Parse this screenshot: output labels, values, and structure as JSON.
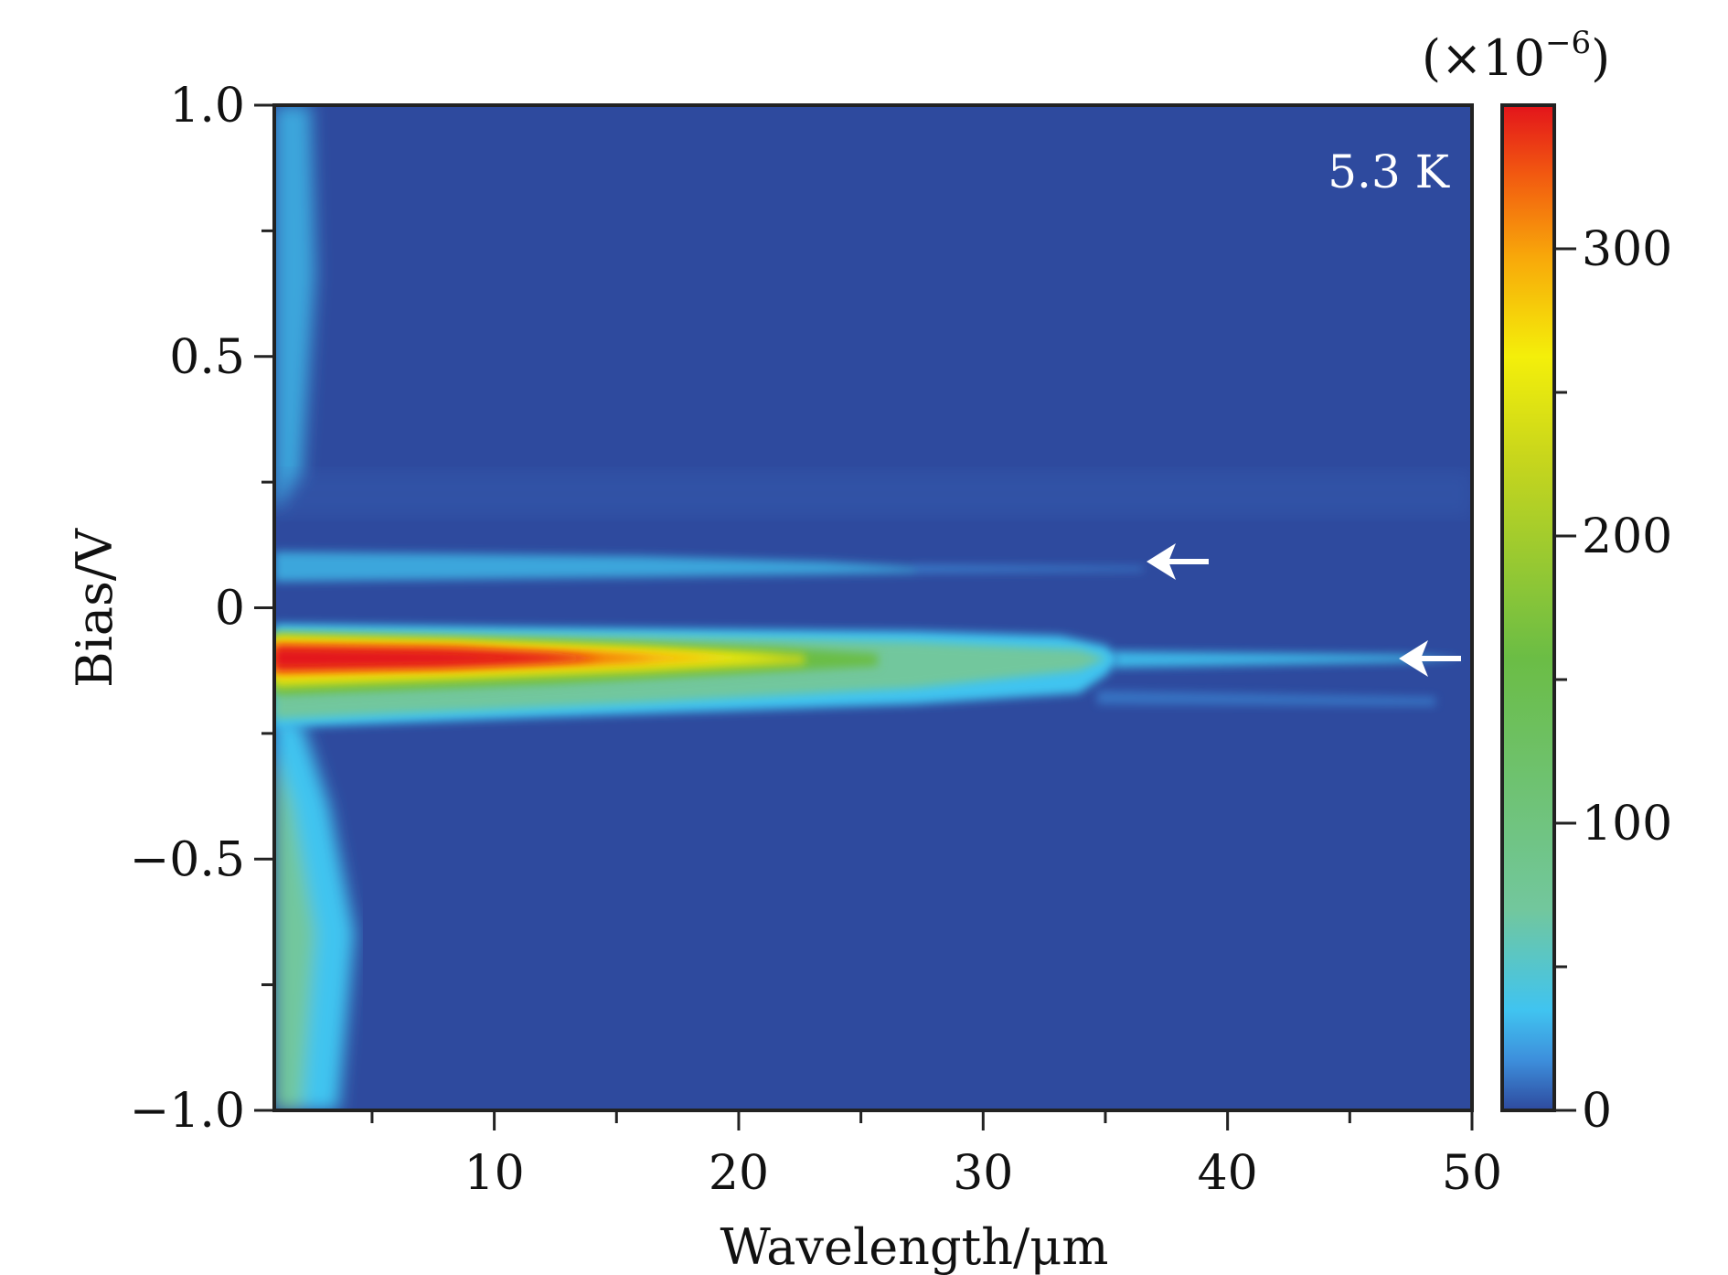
{
  "chart_data": {
    "type": "heatmap",
    "title": "",
    "xlabel": "Wavelength/μm",
    "ylabel": "Bias/V",
    "xlim": [
      1,
      50
    ],
    "ylim": [
      -1.0,
      1.0
    ],
    "x_ticks": [
      10,
      20,
      30,
      40,
      50
    ],
    "x_tick_labels": [
      "10",
      "20",
      "30",
      "40",
      "50"
    ],
    "x_minor_ticks": [
      5,
      15,
      25,
      35,
      45
    ],
    "y_ticks": [
      1.0,
      0.5,
      0,
      -0.5,
      -1.0
    ],
    "y_tick_labels": [
      "1.0",
      "0.5",
      "0",
      "−0.5",
      "−1.0"
    ],
    "y_minor_ticks": [
      0.75,
      0.25,
      -0.25,
      -0.75
    ],
    "annotation": "5.3 K",
    "arrows": [
      {
        "x": 38.5,
        "y": 0.1,
        "direction": "left"
      },
      {
        "x": 48.5,
        "y": -0.09,
        "direction": "left"
      }
    ],
    "colorbar": {
      "label": "(×10",
      "exponent": "−6",
      "label_close": ")",
      "range": [
        0,
        350
      ],
      "ticks": [
        0,
        100,
        200,
        300
      ],
      "tick_labels": [
        "0",
        "100",
        "200",
        "300"
      ],
      "minor_ticks": [
        50,
        150,
        250
      ],
      "colors": [
        "#2e4a9e",
        "#3d8fdc",
        "#40c4f0",
        "#72c79d",
        "#6bbd45",
        "#c8d61c",
        "#f4ef0a",
        "#f8a70a",
        "#f25a10",
        "#e3141b"
      ],
      "color_stops": [
        0,
        0.05,
        0.1,
        0.2,
        0.45,
        0.65,
        0.75,
        0.85,
        0.93,
        1.0
      ]
    },
    "features": [
      {
        "name": "main band",
        "bias_center": -0.09,
        "peak_value": 350,
        "extends_to_wavelength": 36
      },
      {
        "name": "upper band",
        "bias_center": 0.085,
        "peak_value": 30,
        "extends_to_wavelength": 35
      },
      {
        "name": "tail at main band",
        "bias_center": -0.09,
        "peak_value": 45,
        "extends_to_wavelength": 47
      },
      {
        "name": "left edge signal",
        "wavelength_range": [
          1,
          5
        ],
        "peak_value": 120
      }
    ]
  }
}
